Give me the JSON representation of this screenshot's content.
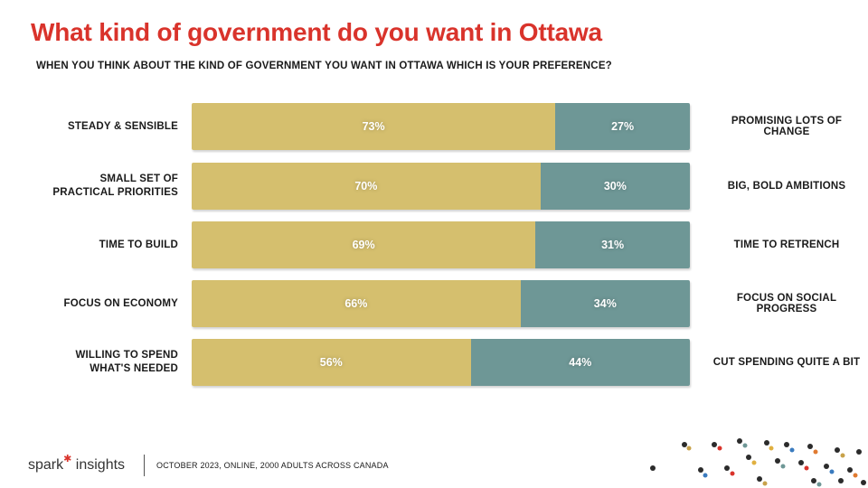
{
  "title": "What kind of government do you want in Ottawa",
  "subtitle": "WHEN YOU THINK ABOUT THE KIND OF GOVERNMENT YOU WANT IN OTTAWA WHICH IS YOUR PREFERENCE?",
  "footer": {
    "brand_word1": "spark",
    "brand_word2": "insights",
    "note": "OCTOBER 2023, ONLINE, 2000 ADULTS ACROSS CANADA"
  },
  "colors": {
    "title": "#d9332b",
    "left_segment": "#d5bf6e",
    "right_segment": "#6e9796"
  },
  "chart_data": {
    "type": "bar",
    "stacked": true,
    "orientation": "horizontal",
    "xlim": [
      0,
      100
    ],
    "categories": [
      {
        "left": "STEADY & SENSIBLE",
        "right": "PROMISING LOTS OF CHANGE"
      },
      {
        "left": "SMALL SET OF PRACTICAL PRIORITIES",
        "right": "BIG, BOLD AMBITIONS"
      },
      {
        "left": "TIME TO BUILD",
        "right": "TIME TO RETRENCH"
      },
      {
        "left": "FOCUS ON ECONOMY",
        "right": "FOCUS ON SOCIAL PROGRESS"
      },
      {
        "left": "WILLING TO SPEND WHAT'S NEEDED",
        "right": "CUT SPENDING QUITE A BIT"
      }
    ],
    "series": [
      {
        "values": [
          73,
          70,
          69,
          66,
          56
        ],
        "labels": [
          "73%",
          "70%",
          "69%",
          "66%",
          "56%"
        ]
      },
      {
        "values": [
          27,
          30,
          31,
          34,
          44
        ],
        "labels": [
          "27%",
          "30%",
          "31%",
          "34%",
          "44%"
        ]
      }
    ]
  }
}
